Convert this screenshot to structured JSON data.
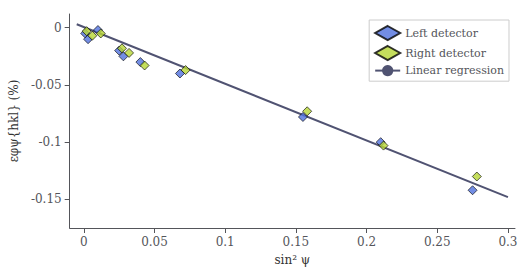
{
  "chart_data": {
    "type": "scatter",
    "xlabel": "sin² ψ",
    "ylabel": "εφψ{hkl} (%)",
    "xlim": [
      -0.01,
      0.305
    ],
    "ylim": [
      -0.175,
      0.012
    ],
    "xticks": [
      0.0,
      0.05,
      0.1,
      0.15,
      0.2,
      0.25,
      0.3
    ],
    "yticks": [
      0.0,
      -0.05,
      -0.1,
      -0.15
    ],
    "grid": false,
    "legend": "upper right",
    "series": [
      {
        "name": "Left detector",
        "type": "scatter",
        "marker": "diamond",
        "x": [
          0.001,
          0.003,
          0.01,
          0.025,
          0.028,
          0.04,
          0.068,
          0.155,
          0.21,
          0.275
        ],
        "values": [
          -0.005,
          -0.01,
          -0.002,
          -0.02,
          -0.025,
          -0.03,
          -0.04,
          -0.078,
          -0.1,
          -0.142
        ]
      },
      {
        "name": "Right detector",
        "type": "scatter",
        "marker": "diamond",
        "x": [
          0.002,
          0.006,
          0.012,
          0.027,
          0.032,
          0.043,
          0.072,
          0.158,
          0.212,
          0.278
        ],
        "values": [
          -0.003,
          -0.007,
          -0.005,
          -0.018,
          -0.022,
          -0.033,
          -0.037,
          -0.073,
          -0.103,
          -0.13
        ]
      },
      {
        "name": "Linear regression",
        "type": "line",
        "line_style": "solid",
        "x": [
          -0.005,
          0.3
        ],
        "values": [
          0.003,
          -0.148
        ]
      }
    ]
  }
}
